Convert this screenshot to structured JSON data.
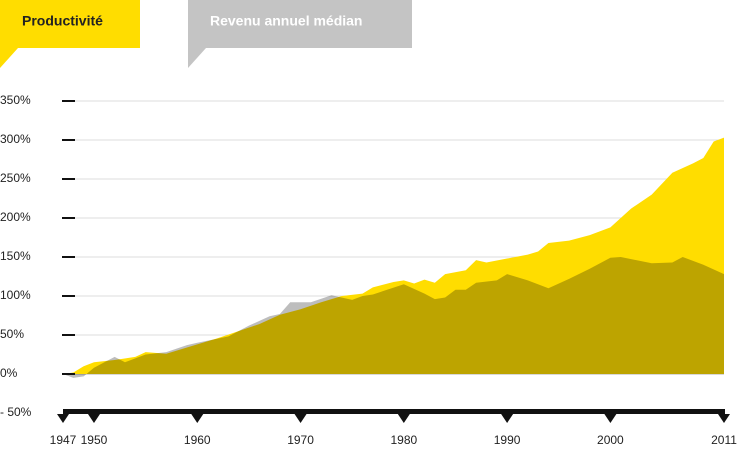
{
  "chart_data": {
    "type": "area",
    "x_year_unit": null,
    "series": [
      {
        "name": "Productivité",
        "color": "#ffdd00",
        "x": [
          1947,
          1948,
          1949,
          1950,
          1952,
          1954,
          1955,
          1957,
          1958,
          1960,
          1962,
          1964,
          1966,
          1968,
          1970,
          1972,
          1974,
          1976,
          1977,
          1979,
          1980,
          1981,
          1982,
          1983,
          1984,
          1986,
          1987,
          1988,
          1990,
          1992,
          1993,
          1994,
          1996,
          1998,
          2000,
          2002,
          2004,
          2006,
          2008,
          2009,
          2010,
          2011
        ],
        "values": [
          0,
          2,
          10,
          15,
          18,
          22,
          28,
          26,
          30,
          38,
          46,
          55,
          64,
          76,
          83,
          92,
          100,
          103,
          111,
          118,
          120,
          116,
          121,
          117,
          128,
          133,
          146,
          143,
          148,
          153,
          157,
          168,
          171,
          178,
          188,
          212,
          230,
          258,
          270,
          277,
          298,
          303
        ]
      },
      {
        "name": "Revenu annuel médian",
        "color": "#bdbdbd",
        "x": [
          1947,
          1948,
          1949,
          1950,
          1952,
          1953,
          1955,
          1957,
          1959,
          1960,
          1963,
          1965,
          1967,
          1968,
          1969,
          1971,
          1973,
          1975,
          1976,
          1977,
          1980,
          1982,
          1983,
          1984,
          1985,
          1986,
          1987,
          1989,
          1990,
          1992,
          1994,
          1996,
          1998,
          2000,
          2001,
          2004,
          2006,
          2007,
          2009,
          2011
        ],
        "values": [
          0,
          -5,
          -3,
          8,
          22,
          15,
          25,
          28,
          37,
          40,
          48,
          62,
          74,
          77,
          92,
          92,
          101,
          95,
          100,
          102,
          115,
          103,
          96,
          98,
          108,
          108,
          117,
          120,
          128,
          120,
          110,
          122,
          135,
          149,
          150,
          142,
          143,
          150,
          140,
          128
        ]
      }
    ],
    "xlim": [
      1947,
      2011
    ],
    "xticks": [
      1947,
      1950,
      1960,
      1970,
      1980,
      1990,
      2000,
      2011
    ],
    "ylim": [
      -50,
      350
    ],
    "yticks": [
      {
        "value": 350,
        "label": "350%"
      },
      {
        "value": 300,
        "label": "300%"
      },
      {
        "value": 250,
        "label": "250%"
      },
      {
        "value": 200,
        "label": "200%"
      },
      {
        "value": 150,
        "label": "150%"
      },
      {
        "value": 100,
        "label": "100%"
      },
      {
        "value": 50,
        "label": "50%"
      },
      {
        "value": 0,
        "label": "0%"
      },
      {
        "value": -50,
        "label": "- 50%"
      }
    ],
    "grid": true
  }
}
